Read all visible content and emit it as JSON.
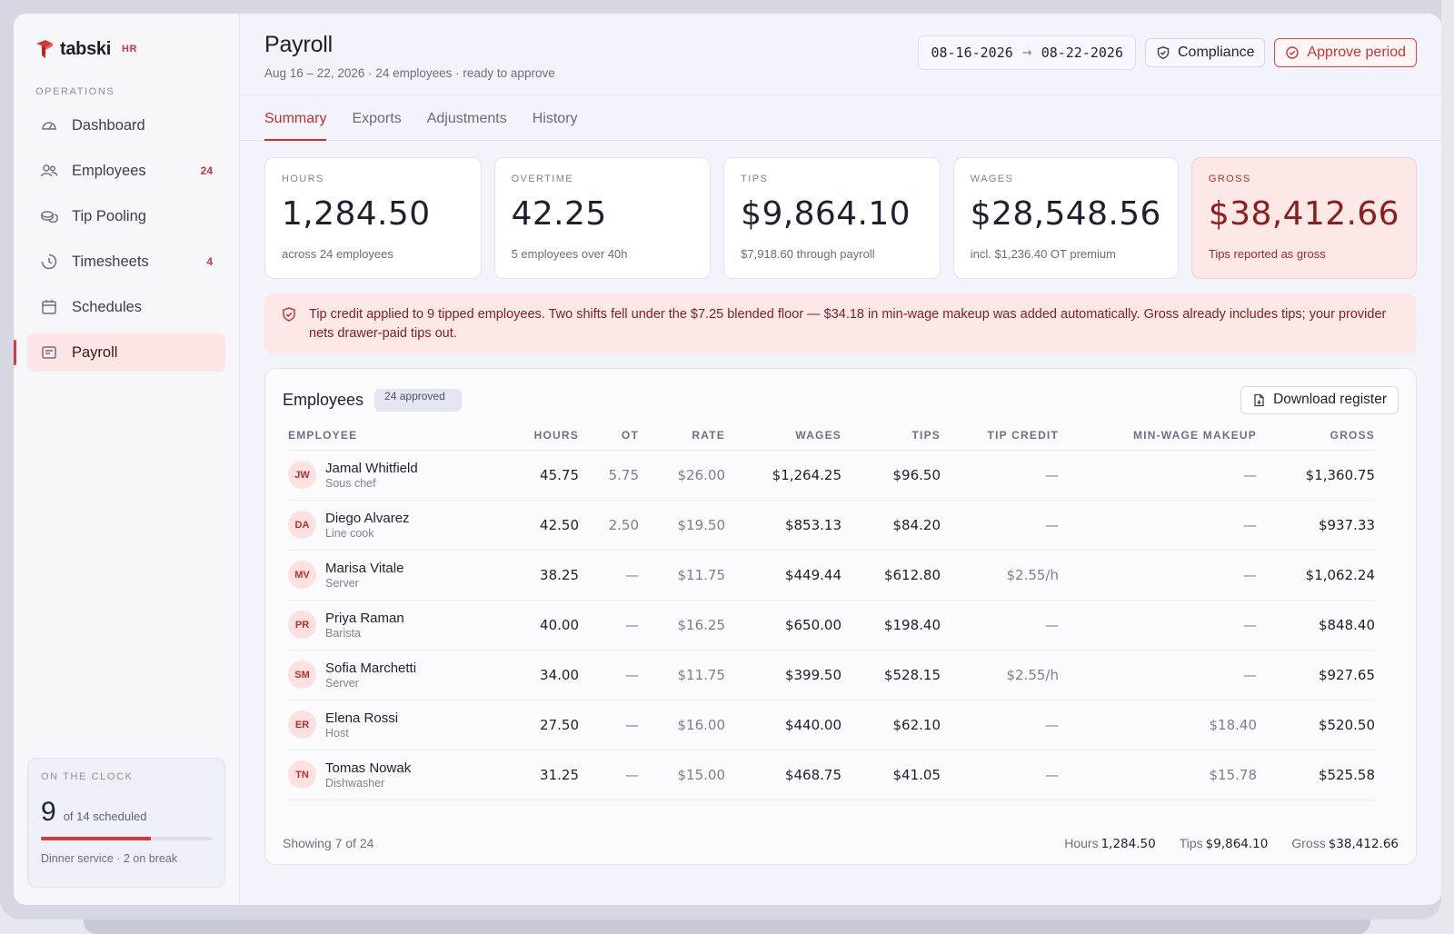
{
  "brand": {
    "name": "tabski",
    "tag": "HR"
  },
  "sidebar": {
    "section": "OPERATIONS",
    "items": [
      {
        "label": "Dashboard",
        "icon": "gauge-icon",
        "count": ""
      },
      {
        "label": "Employees",
        "icon": "people-icon",
        "count": "24"
      },
      {
        "label": "Tip Pooling",
        "icon": "coins-icon",
        "count": ""
      },
      {
        "label": "Timesheets",
        "icon": "clock-icon",
        "count": "4"
      },
      {
        "label": "Schedules",
        "icon": "calendar-icon",
        "count": ""
      },
      {
        "label": "Payroll",
        "icon": "receipt-icon",
        "count": "",
        "active": true
      }
    ],
    "clock": {
      "label": "ON THE CLOCK",
      "count": "9",
      "scheduled": "of 14 scheduled",
      "progress": 0.643,
      "footer": "Dinner service · 2 on break"
    }
  },
  "header": {
    "title": "Payroll",
    "subtitle": "Aug 16 – 22, 2026 · 24 employees · ready to approve",
    "date_start": "08-16-2026",
    "date_end": "08-22-2026",
    "compliance_label": "Compliance",
    "approve_label": "Approve period"
  },
  "tabs": [
    "Summary",
    "Exports",
    "Adjustments",
    "History"
  ],
  "kpis": [
    {
      "label": "HOURS",
      "value": "1,284.50",
      "sub": "across 24 employees"
    },
    {
      "label": "OVERTIME",
      "value": "42.25",
      "sub": "5 employees over 40h"
    },
    {
      "label": "TIPS",
      "value": "$9,864.10",
      "sub": "$7,918.60 through payroll"
    },
    {
      "label": "WAGES",
      "value": "$28,548.56",
      "sub": "incl. $1,236.40 OT premium"
    },
    {
      "label": "GROSS",
      "value": "$38,412.66",
      "sub": "Tips reported as gross"
    }
  ],
  "alert": "Tip credit applied to 9 tipped employees. Two shifts fell under the $7.25 blended floor — $34.18 in min-wage makeup was added automatically. Gross already includes tips; your provider nets drawer-paid tips out.",
  "employees_panel": {
    "title": "Employees",
    "badge": "24 approved",
    "download_label": "Download register",
    "columns": [
      "EMPLOYEE",
      "HOURS",
      "OT",
      "RATE",
      "WAGES",
      "TIPS",
      "TIP CREDIT",
      "MIN-WAGE MAKEUP",
      "GROSS"
    ],
    "rows": [
      {
        "initials": "JW",
        "name": "Jamal Whitfield",
        "role": "Sous chef",
        "hours": "45.75",
        "ot": "5.75",
        "rate": "$26.00",
        "wages": "$1,264.25",
        "tips": "$96.50",
        "tip_credit": "—",
        "makeup": "—",
        "gross": "$1,360.75"
      },
      {
        "initials": "DA",
        "name": "Diego Alvarez",
        "role": "Line cook",
        "hours": "42.50",
        "ot": "2.50",
        "rate": "$19.50",
        "wages": "$853.13",
        "tips": "$84.20",
        "tip_credit": "—",
        "makeup": "—",
        "gross": "$937.33"
      },
      {
        "initials": "MV",
        "name": "Marisa Vitale",
        "role": "Server",
        "hours": "38.25",
        "ot": "—",
        "rate": "$11.75",
        "wages": "$449.44",
        "tips": "$612.80",
        "tip_credit": "$2.55/h",
        "makeup": "—",
        "gross": "$1,062.24"
      },
      {
        "initials": "PR",
        "name": "Priya Raman",
        "role": "Barista",
        "hours": "40.00",
        "ot": "—",
        "rate": "$16.25",
        "wages": "$650.00",
        "tips": "$198.40",
        "tip_credit": "—",
        "makeup": "—",
        "gross": "$848.40"
      },
      {
        "initials": "SM",
        "name": "Sofia Marchetti",
        "role": "Server",
        "hours": "34.00",
        "ot": "—",
        "rate": "$11.75",
        "wages": "$399.50",
        "tips": "$528.15",
        "tip_credit": "$2.55/h",
        "makeup": "—",
        "gross": "$927.65"
      },
      {
        "initials": "ER",
        "name": "Elena Rossi",
        "role": "Host",
        "hours": "27.50",
        "ot": "—",
        "rate": "$16.00",
        "wages": "$440.00",
        "tips": "$62.10",
        "tip_credit": "—",
        "makeup": "$18.40",
        "gross": "$520.50"
      },
      {
        "initials": "TN",
        "name": "Tomas Nowak",
        "role": "Dishwasher",
        "hours": "31.25",
        "ot": "—",
        "rate": "$15.00",
        "wages": "$468.75",
        "tips": "$41.05",
        "tip_credit": "—",
        "makeup": "$15.78",
        "gross": "$525.58"
      }
    ],
    "footer": {
      "showing": "Showing 7 of 24",
      "hours_label": "Hours",
      "hours": "1,284.50",
      "tips_label": "Tips",
      "tips": "$9,864.10",
      "gross_label": "Gross",
      "gross": "$38,412.66"
    }
  },
  "colors": {
    "accent": "#d33b3b",
    "gross_bg": "#fde8e8",
    "sidebar_active": "#fde5e5"
  }
}
